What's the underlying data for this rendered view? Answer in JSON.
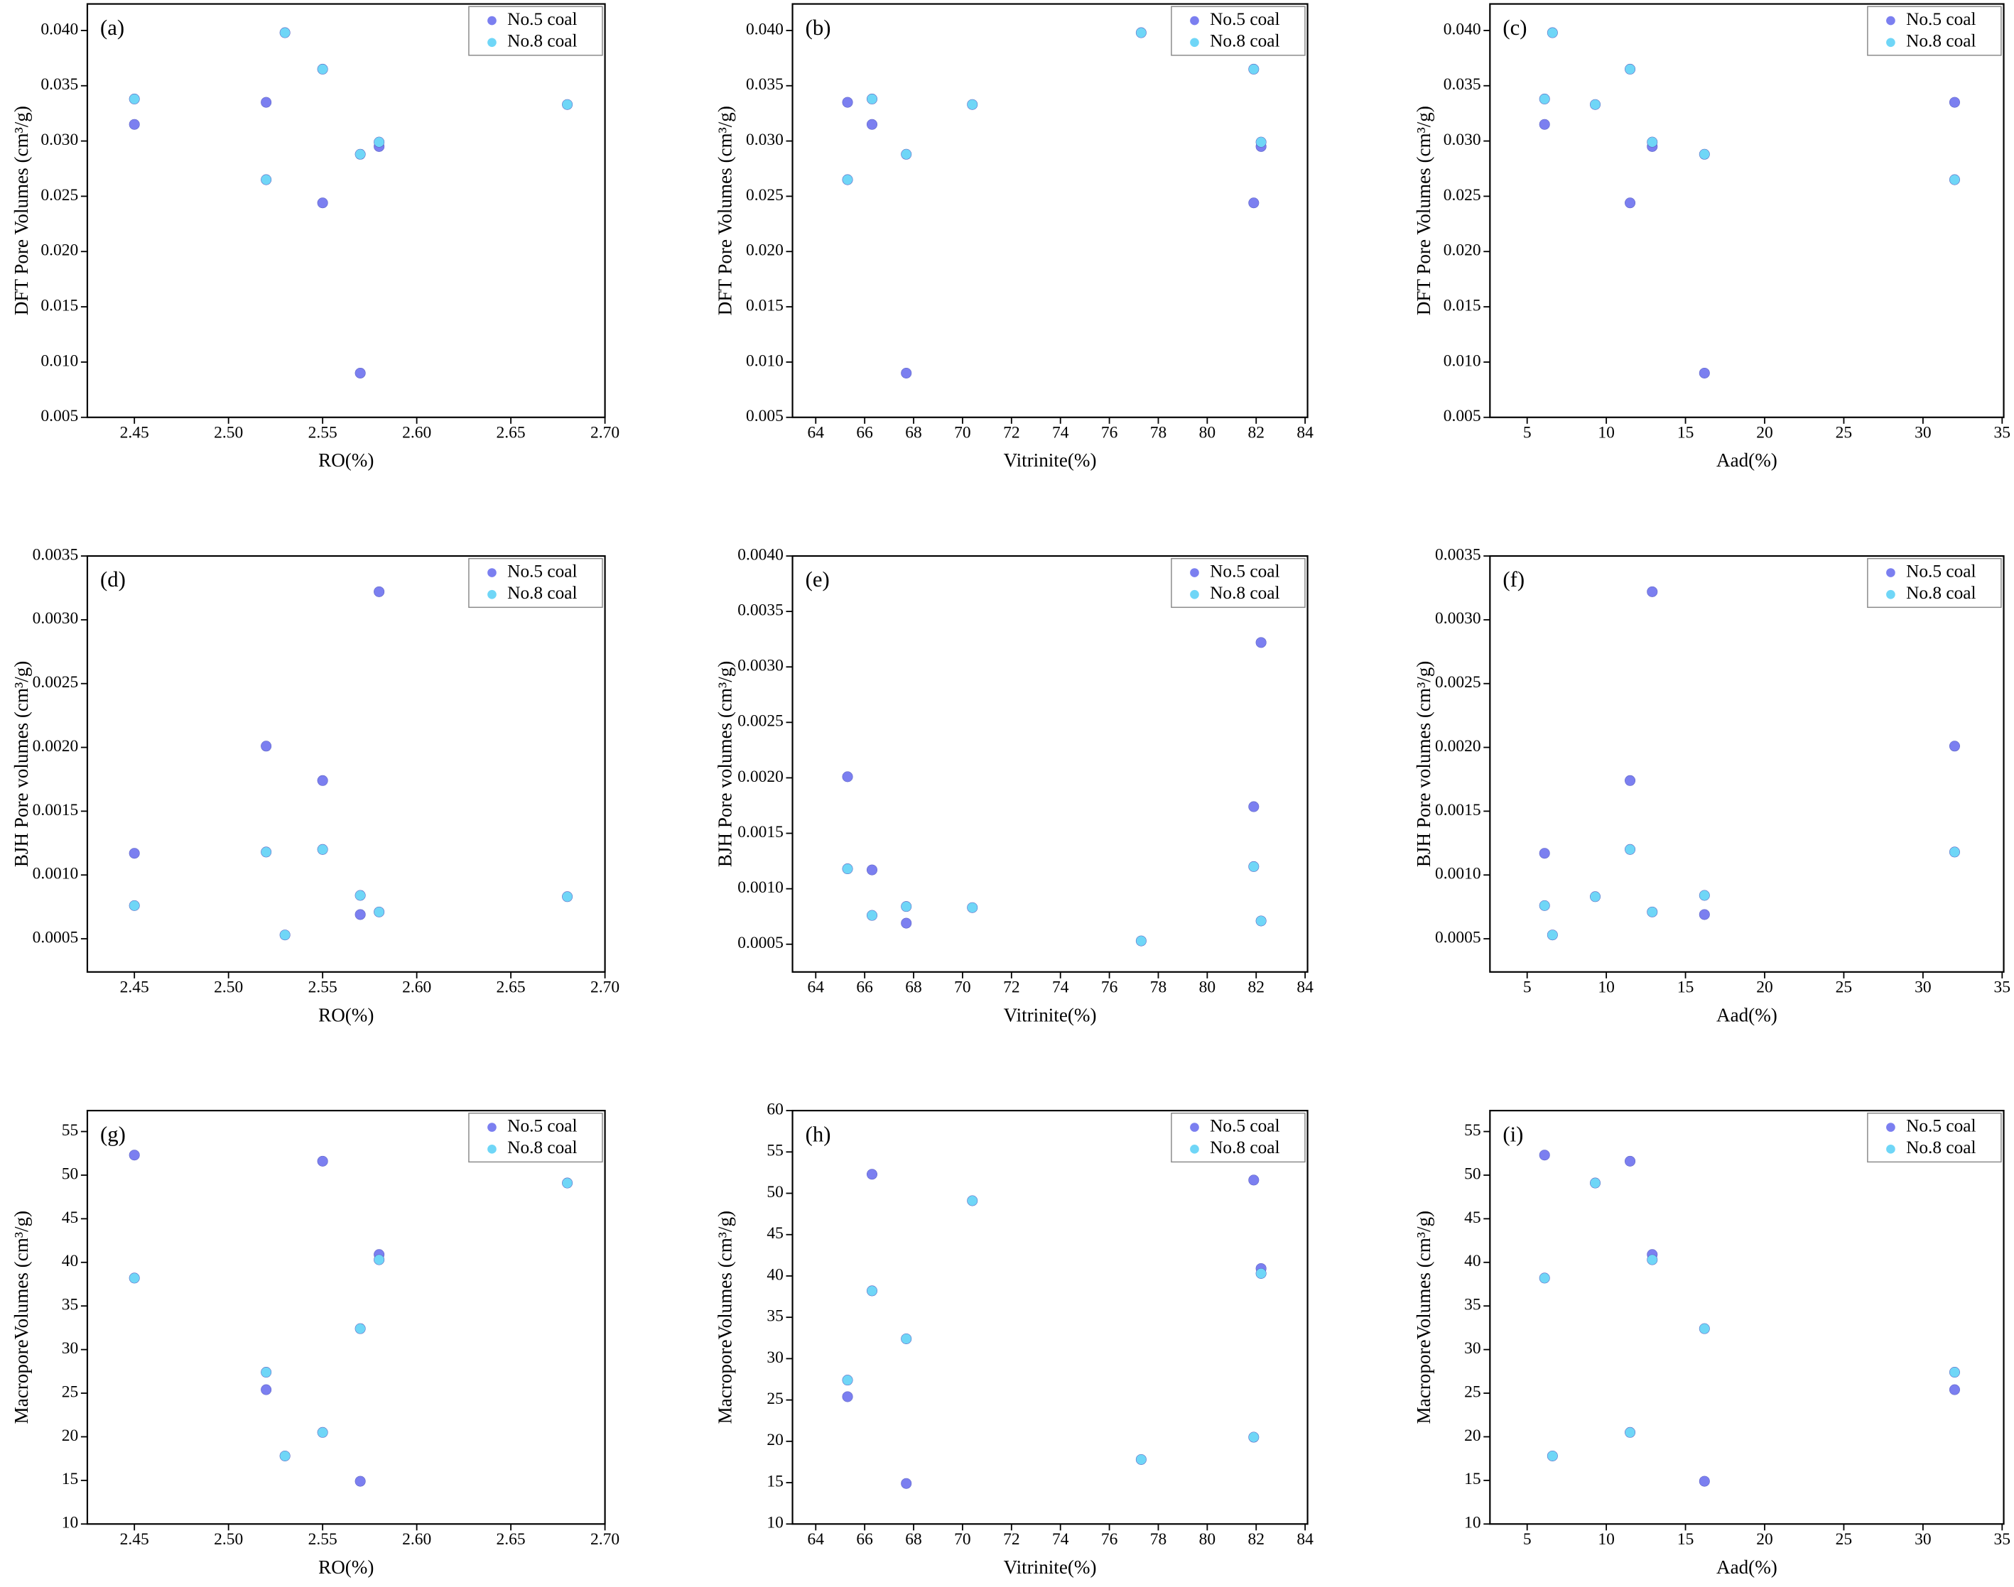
{
  "chart_data": [
    {
      "type": "scatter",
      "panel_label": "(a)",
      "xlabel": "RO(%)",
      "ylabel": "DFT Pore Volumes (cm³/g)",
      "xlim": [
        2.425,
        2.7
      ],
      "ylim": [
        0.005,
        0.0424
      ],
      "xticks": [
        2.45,
        {
          "value": 2.5,
          "label": "2.50"
        },
        2.55,
        {
          "value": 2.6,
          "label": "2.60"
        },
        2.65,
        {
          "value": 2.7,
          "label": "2.70"
        }
      ],
      "yticks": [
        0.005,
        {
          "value": 0.01,
          "label": "0.010"
        },
        0.015,
        {
          "value": 0.02,
          "label": "0.020"
        },
        0.025,
        {
          "value": 0.03,
          "label": "0.030"
        },
        0.035,
        {
          "value": 0.04,
          "label": "0.040"
        }
      ],
      "series": [
        {
          "name": "No.5 coal",
          "color": "#7b7ff0",
          "x": [
            2.45,
            2.52,
            2.55,
            2.57,
            2.58
          ],
          "values": [
            0.0315,
            0.0335,
            0.0244,
            0.009,
            0.0295
          ]
        },
        {
          "name": "No.8 coal",
          "color": "#6fd6f7",
          "x": [
            2.45,
            2.52,
            2.53,
            2.55,
            2.57,
            2.58,
            2.68
          ],
          "values": [
            0.0338,
            0.0265,
            0.0398,
            0.0365,
            0.0288,
            0.0299,
            0.0333
          ]
        }
      ]
    },
    {
      "type": "scatter",
      "panel_label": "(b)",
      "xlabel": "Vitrinite(%)",
      "ylabel": "DFT Pore Volumes (cm³/g)",
      "xlim": [
        63.05,
        84.1
      ],
      "ylim": [
        0.005,
        0.0424
      ],
      "xticks": [
        64,
        66,
        68,
        70,
        72,
        74,
        76,
        78,
        80,
        82,
        84
      ],
      "yticks": [
        0.005,
        {
          "value": 0.01,
          "label": "0.010"
        },
        0.015,
        {
          "value": 0.02,
          "label": "0.020"
        },
        0.025,
        {
          "value": 0.03,
          "label": "0.030"
        },
        0.035,
        {
          "value": 0.04,
          "label": "0.040"
        }
      ],
      "series": [
        {
          "name": "No.5 coal",
          "color": "#7b7ff0",
          "x": [
            66.3,
            65.3,
            81.9,
            67.7,
            82.2
          ],
          "values": [
            0.0315,
            0.0335,
            0.0244,
            0.009,
            0.0295
          ]
        },
        {
          "name": "No.8 coal",
          "color": "#6fd6f7",
          "x": [
            66.3,
            65.3,
            77.3,
            81.9,
            67.7,
            82.2,
            70.4
          ],
          "values": [
            0.0338,
            0.0265,
            0.0398,
            0.0365,
            0.0288,
            0.0299,
            0.0333
          ]
        }
      ]
    },
    {
      "type": "scatter",
      "panel_label": "(c)",
      "xlabel": "Aad(%)",
      "ylabel": "DFT Pore Volumes (cm³/g)",
      "xlim": [
        2.65,
        35.1
      ],
      "ylim": [
        0.005,
        0.0424
      ],
      "xticks": [
        5,
        10,
        15,
        20,
        25,
        30,
        35
      ],
      "yticks": [
        0.005,
        {
          "value": 0.01,
          "label": "0.010"
        },
        0.015,
        {
          "value": 0.02,
          "label": "0.020"
        },
        0.025,
        {
          "value": 0.03,
          "label": "0.030"
        },
        0.035,
        {
          "value": 0.04,
          "label": "0.040"
        }
      ],
      "series": [
        {
          "name": "No.5 coal",
          "color": "#7b7ff0",
          "x": [
            6.1,
            32.0,
            11.5,
            16.2,
            12.9
          ],
          "values": [
            0.0315,
            0.0335,
            0.0244,
            0.009,
            0.0295
          ]
        },
        {
          "name": "No.8 coal",
          "color": "#6fd6f7",
          "x": [
            6.1,
            32.0,
            6.6,
            11.5,
            16.2,
            12.9,
            9.3
          ],
          "values": [
            0.0338,
            0.0265,
            0.0398,
            0.0365,
            0.0288,
            0.0299,
            0.0333
          ]
        }
      ]
    },
    {
      "type": "scatter",
      "panel_label": "(d)",
      "xlabel": "RO(%)",
      "ylabel": "BJH Pore volumes (cm³/g)",
      "xlim": [
        2.425,
        2.7
      ],
      "ylim": [
        0.00024,
        0.0035
      ],
      "xticks": [
        2.45,
        {
          "value": 2.5,
          "label": "2.50"
        },
        2.55,
        {
          "value": 2.6,
          "label": "2.60"
        },
        2.65,
        {
          "value": 2.7,
          "label": "2.70"
        }
      ],
      "yticks": [
        0.0005,
        {
          "value": 0.001,
          "label": "0.0010"
        },
        0.0015,
        {
          "value": 0.002,
          "label": "0.0020"
        },
        0.0025,
        {
          "value": 0.003,
          "label": "0.0030"
        },
        0.0035
      ],
      "series": [
        {
          "name": "No.5 coal",
          "color": "#7b7ff0",
          "x": [
            2.45,
            2.52,
            2.55,
            2.57,
            2.58
          ],
          "values": [
            0.00117,
            0.00201,
            0.00174,
            0.00069,
            0.00322
          ]
        },
        {
          "name": "No.8 coal",
          "color": "#6fd6f7",
          "x": [
            2.45,
            2.52,
            2.53,
            2.55,
            2.57,
            2.58,
            2.68
          ],
          "values": [
            0.00076,
            0.00118,
            0.00053,
            0.0012,
            0.00084,
            0.00071,
            0.00083
          ]
        }
      ]
    },
    {
      "type": "scatter",
      "panel_label": "(e)",
      "xlabel": "Vitrinite(%)",
      "ylabel": "BJH Pore volumes (cm³/g)",
      "xlim": [
        63.05,
        84.1
      ],
      "ylim": [
        0.00025,
        0.004
      ],
      "xticks": [
        64,
        66,
        68,
        70,
        72,
        74,
        76,
        78,
        80,
        82,
        84
      ],
      "yticks": [
        0.0005,
        {
          "value": 0.001,
          "label": "0.0010"
        },
        0.0015,
        {
          "value": 0.002,
          "label": "0.0020"
        },
        0.0025,
        {
          "value": 0.003,
          "label": "0.0030"
        },
        0.0035,
        {
          "value": 0.004,
          "label": "0.0040"
        }
      ],
      "series": [
        {
          "name": "No.5 coal",
          "color": "#7b7ff0",
          "x": [
            66.3,
            65.3,
            81.9,
            67.7,
            82.2
          ],
          "values": [
            0.00117,
            0.00201,
            0.00174,
            0.00069,
            0.00322
          ]
        },
        {
          "name": "No.8 coal",
          "color": "#6fd6f7",
          "x": [
            66.3,
            65.3,
            77.3,
            81.9,
            67.7,
            82.2,
            70.4
          ],
          "values": [
            0.00076,
            0.00118,
            0.00053,
            0.0012,
            0.00084,
            0.00071,
            0.00083
          ]
        }
      ]
    },
    {
      "type": "scatter",
      "panel_label": "(f)",
      "xlabel": "Aad(%)",
      "ylabel": "BJH Pore volumes (cm³/g)",
      "xlim": [
        2.65,
        35.1
      ],
      "ylim": [
        0.00024,
        0.0035
      ],
      "xticks": [
        5,
        10,
        15,
        20,
        25,
        30,
        35
      ],
      "yticks": [
        0.0005,
        {
          "value": 0.001,
          "label": "0.0010"
        },
        0.0015,
        {
          "value": 0.002,
          "label": "0.0020"
        },
        0.0025,
        {
          "value": 0.003,
          "label": "0.0030"
        },
        0.0035
      ],
      "series": [
        {
          "name": "No.5 coal",
          "color": "#7b7ff0",
          "x": [
            6.1,
            32.0,
            11.5,
            16.2,
            12.9
          ],
          "values": [
            0.00117,
            0.00201,
            0.00174,
            0.00069,
            0.00322
          ]
        },
        {
          "name": "No.8 coal",
          "color": "#6fd6f7",
          "x": [
            6.1,
            32.0,
            6.6,
            11.5,
            16.2,
            12.9,
            9.3
          ],
          "values": [
            0.00076,
            0.00118,
            0.00053,
            0.0012,
            0.00084,
            0.00071,
            0.00083
          ]
        }
      ]
    },
    {
      "type": "scatter",
      "panel_label": "(g)",
      "xlabel": "RO(%)",
      "ylabel": "MacroporeVolumes (cm³/g)",
      "xlim": [
        2.425,
        2.7
      ],
      "ylim": [
        10,
        57.4
      ],
      "xticks": [
        2.45,
        {
          "value": 2.5,
          "label": "2.50"
        },
        2.55,
        {
          "value": 2.6,
          "label": "2.60"
        },
        2.65,
        {
          "value": 2.7,
          "label": "2.70"
        }
      ],
      "yticks": [
        10,
        15,
        20,
        25,
        30,
        35,
        40,
        45,
        50,
        55
      ],
      "series": [
        {
          "name": "No.5 coal",
          "color": "#7b7ff0",
          "x": [
            2.45,
            2.52,
            2.55,
            2.57,
            2.58
          ],
          "values": [
            52.3,
            25.4,
            51.6,
            14.9,
            40.9
          ]
        },
        {
          "name": "No.8 coal",
          "color": "#6fd6f7",
          "x": [
            2.45,
            2.52,
            2.53,
            2.55,
            2.57,
            2.58,
            2.68
          ],
          "values": [
            38.2,
            27.4,
            17.8,
            20.5,
            32.4,
            40.3,
            49.1
          ]
        }
      ]
    },
    {
      "type": "scatter",
      "panel_label": "(h)",
      "xlabel": "Vitrinite(%)",
      "ylabel": "MacroporeVolumes (cm³/g)",
      "xlim": [
        63.05,
        84.1
      ],
      "ylim": [
        10,
        60
      ],
      "xticks": [
        64,
        66,
        68,
        70,
        72,
        74,
        76,
        78,
        80,
        82,
        84
      ],
      "yticks": [
        10,
        15,
        20,
        25,
        30,
        35,
        40,
        45,
        50,
        55,
        60
      ],
      "series": [
        {
          "name": "No.5 coal",
          "color": "#7b7ff0",
          "x": [
            66.3,
            65.3,
            81.9,
            67.7,
            82.2
          ],
          "values": [
            52.3,
            25.4,
            51.6,
            14.9,
            40.9
          ]
        },
        {
          "name": "No.8 coal",
          "color": "#6fd6f7",
          "x": [
            66.3,
            65.3,
            77.3,
            81.9,
            67.7,
            82.2,
            70.4
          ],
          "values": [
            38.2,
            27.4,
            17.8,
            20.5,
            32.4,
            40.3,
            49.1
          ]
        }
      ]
    },
    {
      "type": "scatter",
      "panel_label": "(i)",
      "xlabel": "Aad(%)",
      "ylabel": "MacroporeVolumes (cm³/g)",
      "xlim": [
        2.65,
        35.1
      ],
      "ylim": [
        10,
        57.4
      ],
      "xticks": [
        5,
        10,
        15,
        20,
        25,
        30,
        35
      ],
      "yticks": [
        10,
        15,
        20,
        25,
        30,
        35,
        40,
        45,
        50,
        55
      ],
      "series": [
        {
          "name": "No.5 coal",
          "color": "#7b7ff0",
          "x": [
            6.1,
            32.0,
            11.5,
            16.2,
            12.9
          ],
          "values": [
            52.3,
            25.4,
            51.6,
            14.9,
            40.9
          ]
        },
        {
          "name": "No.8 coal",
          "color": "#6fd6f7",
          "x": [
            6.1,
            32.0,
            6.6,
            11.5,
            16.2,
            12.9,
            9.3
          ],
          "values": [
            38.2,
            27.4,
            17.8,
            20.5,
            32.4,
            40.3,
            49.1
          ]
        }
      ]
    }
  ]
}
